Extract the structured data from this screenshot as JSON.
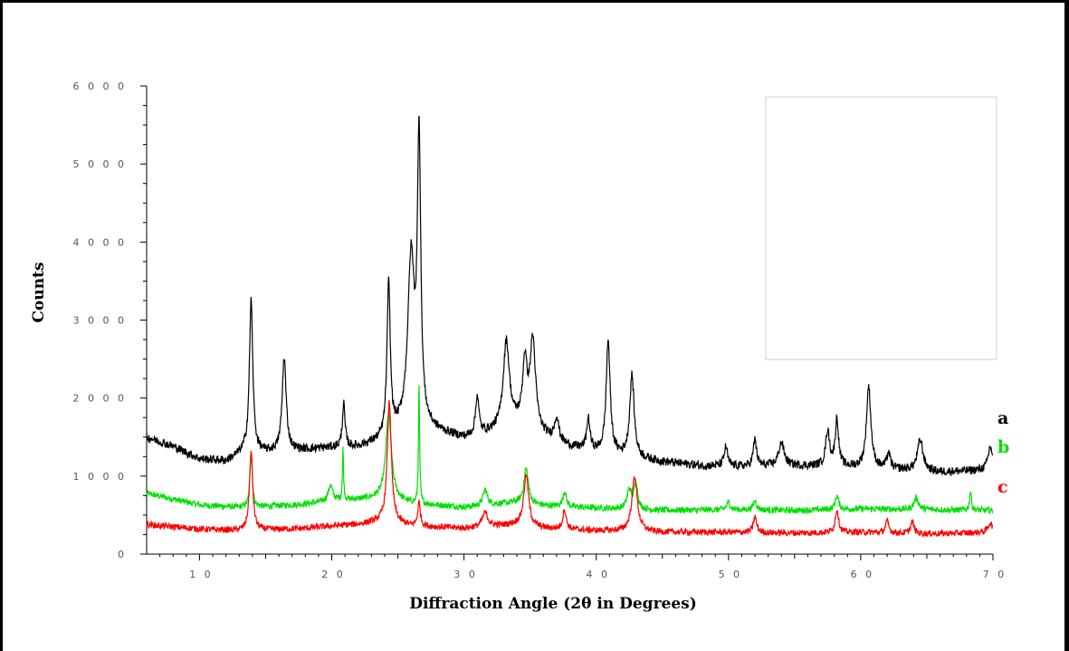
{
  "chart_data": {
    "type": "line",
    "xlabel": "Diffraction Angle (2θ in Degrees)",
    "ylabel": "Counts",
    "xlim": [
      6,
      70
    ],
    "ylim": [
      0,
      6000
    ],
    "xticks": [
      10,
      20,
      30,
      40,
      50,
      60,
      70
    ],
    "yticks": [
      0,
      1000,
      2000,
      3000,
      4000,
      5000,
      6000
    ],
    "legend": "none (series letters at right end of curves)",
    "grid": false,
    "series": [
      {
        "name": "a",
        "color": "#000000",
        "baseline": [
          [
            6,
            1500
          ],
          [
            8,
            1380
          ],
          [
            10,
            1220
          ],
          [
            12,
            1190
          ],
          [
            13.5,
            1320
          ],
          [
            15,
            1300
          ],
          [
            20,
            1360
          ],
          [
            22,
            1370
          ],
          [
            24,
            1450
          ],
          [
            26,
            1650
          ],
          [
            28,
            1560
          ],
          [
            30,
            1480
          ],
          [
            32,
            1550
          ],
          [
            34,
            1650
          ],
          [
            36,
            1500
          ],
          [
            38,
            1370
          ],
          [
            40,
            1300
          ],
          [
            42,
            1250
          ],
          [
            45,
            1180
          ],
          [
            48,
            1130
          ],
          [
            52,
            1120
          ],
          [
            55,
            1130
          ],
          [
            58,
            1120
          ],
          [
            62,
            1090
          ],
          [
            66,
            1050
          ],
          [
            70,
            1080
          ]
        ],
        "peaks": [
          [
            13.9,
            1950,
            0.15
          ],
          [
            16.4,
            1200,
            0.18
          ],
          [
            20.9,
            550,
            0.12
          ],
          [
            24.3,
            1950,
            0.15
          ],
          [
            26.0,
            2100,
            0.3
          ],
          [
            26.6,
            3600,
            0.15
          ],
          [
            31.0,
            500,
            0.15
          ],
          [
            33.2,
            1100,
            0.28
          ],
          [
            34.6,
            800,
            0.2
          ],
          [
            35.2,
            1150,
            0.25
          ],
          [
            37.0,
            300,
            0.2
          ],
          [
            39.4,
            400,
            0.15
          ],
          [
            40.9,
            1450,
            0.18
          ],
          [
            42.7,
            1050,
            0.2
          ],
          [
            49.8,
            250,
            0.15
          ],
          [
            52.0,
            350,
            0.15
          ],
          [
            54.0,
            300,
            0.25
          ],
          [
            57.5,
            450,
            0.18
          ],
          [
            58.2,
            600,
            0.15
          ],
          [
            60.6,
            1050,
            0.2
          ],
          [
            62.1,
            200,
            0.15
          ],
          [
            64.5,
            400,
            0.25
          ],
          [
            69.8,
            300,
            0.2
          ]
        ]
      },
      {
        "name": "b",
        "color": "#00e000",
        "baseline": [
          [
            6,
            780
          ],
          [
            10,
            630
          ],
          [
            13,
            600
          ],
          [
            15,
            610
          ],
          [
            18,
            640
          ],
          [
            20,
            680
          ],
          [
            22,
            700
          ],
          [
            24,
            720
          ],
          [
            26,
            650
          ],
          [
            30,
            600
          ],
          [
            34,
            660
          ],
          [
            36,
            620
          ],
          [
            40,
            590
          ],
          [
            45,
            560
          ],
          [
            50,
            570
          ],
          [
            55,
            560
          ],
          [
            60,
            580
          ],
          [
            65,
            570
          ],
          [
            70,
            560
          ]
        ],
        "peaks": [
          [
            13.9,
            750,
            0.1
          ],
          [
            19.9,
            200,
            0.2
          ],
          [
            20.85,
            650,
            0.05
          ],
          [
            24.3,
            1100,
            0.25
          ],
          [
            26.6,
            1550,
            0.05
          ],
          [
            31.6,
            200,
            0.2
          ],
          [
            34.7,
            450,
            0.2
          ],
          [
            37.6,
            200,
            0.15
          ],
          [
            42.5,
            250,
            0.2
          ],
          [
            43.0,
            350,
            0.15
          ],
          [
            50.0,
            100,
            0.15
          ],
          [
            52.0,
            120,
            0.15
          ],
          [
            58.2,
            180,
            0.15
          ],
          [
            64.2,
            150,
            0.2
          ],
          [
            68.3,
            250,
            0.08
          ]
        ]
      },
      {
        "name": "c",
        "color": "#ff0000",
        "baseline": [
          [
            6,
            380
          ],
          [
            10,
            320
          ],
          [
            13,
            300
          ],
          [
            15,
            310
          ],
          [
            18,
            330
          ],
          [
            20,
            360
          ],
          [
            22,
            380
          ],
          [
            24,
            420
          ],
          [
            26,
            360
          ],
          [
            30,
            330
          ],
          [
            34,
            380
          ],
          [
            36,
            330
          ],
          [
            40,
            300
          ],
          [
            45,
            280
          ],
          [
            50,
            280
          ],
          [
            55,
            270
          ],
          [
            60,
            280
          ],
          [
            65,
            260
          ],
          [
            70,
            280
          ]
        ],
        "peaks": [
          [
            13.9,
            1000,
            0.15
          ],
          [
            24.35,
            1550,
            0.18
          ],
          [
            26.6,
            300,
            0.12
          ],
          [
            31.6,
            180,
            0.25
          ],
          [
            34.7,
            650,
            0.22
          ],
          [
            37.6,
            250,
            0.15
          ],
          [
            42.9,
            700,
            0.25
          ],
          [
            52.0,
            200,
            0.15
          ],
          [
            58.2,
            300,
            0.15
          ],
          [
            62.0,
            150,
            0.15
          ],
          [
            63.9,
            150,
            0.15
          ],
          [
            69.8,
            120,
            0.2
          ]
        ]
      }
    ]
  }
}
